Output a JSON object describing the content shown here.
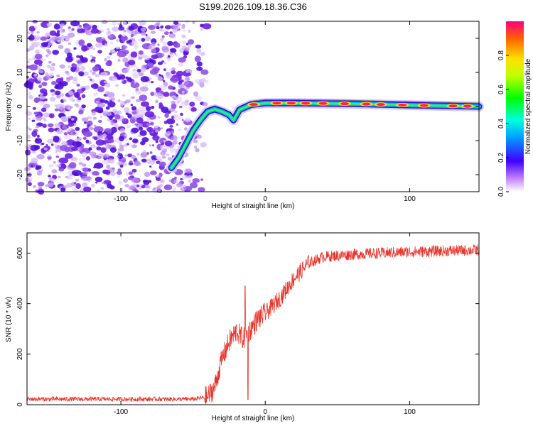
{
  "chart_data": [
    {
      "type": "heatmap",
      "title": "S199.2026.109.18.36.C36",
      "xlabel": "Height of straight line (km)",
      "ylabel": "Frequency (Hz)",
      "xlim": [
        -165,
        148
      ],
      "ylim": [
        -25,
        25
      ],
      "x_ticks": [
        -100,
        0,
        100
      ],
      "x_tick_labels": [
        "-100",
        "0",
        "100"
      ],
      "y_ticks": [
        -20,
        -10,
        0,
        10,
        20
      ],
      "y_tick_labels": [
        "-20",
        "-10",
        "0",
        "10",
        "20"
      ],
      "colorbar": {
        "label": "Normalized spectral amplitude",
        "range": [
          0,
          1
        ],
        "ticks": [
          0,
          0.2,
          0.4,
          0.6,
          0.8
        ],
        "tick_labels": [
          "0.0",
          "0.2",
          "0.4",
          "0.6",
          "0.8"
        ]
      },
      "noise_region_x": [
        -165,
        -52
      ],
      "signal_track": [
        {
          "x": -65,
          "freq": -18
        },
        {
          "x": -60,
          "freq": -15
        },
        {
          "x": -55,
          "freq": -11
        },
        {
          "x": -50,
          "freq": -7
        },
        {
          "x": -45,
          "freq": -4
        },
        {
          "x": -40,
          "freq": -1.5
        },
        {
          "x": -35,
          "freq": -0.8
        },
        {
          "x": -30,
          "freq": -1.5
        },
        {
          "x": -25,
          "freq": -2.5
        },
        {
          "x": -22,
          "freq": -4
        },
        {
          "x": -18,
          "freq": -1
        },
        {
          "x": -10,
          "freq": 0.5
        },
        {
          "x": 0,
          "freq": 1
        },
        {
          "x": 20,
          "freq": 1
        },
        {
          "x": 60,
          "freq": 0.8
        },
        {
          "x": 100,
          "freq": 0.4
        },
        {
          "x": 148,
          "freq": 0
        }
      ],
      "hotspots_x": [
        -8,
        8,
        18,
        28,
        40,
        55,
        70,
        80,
        95,
        110,
        130,
        140
      ]
    },
    {
      "type": "line",
      "xlabel": "Height of straight line (km)",
      "ylabel": "SNR (10 * v/v)",
      "xlim": [
        -165,
        148
      ],
      "ylim": [
        0,
        680
      ],
      "x_ticks": [
        -100,
        0,
        100
      ],
      "x_tick_labels": [
        "-100",
        "0",
        "100"
      ],
      "y_ticks": [
        0,
        200,
        400,
        600
      ],
      "y_tick_labels": [
        "0",
        "200",
        "400",
        "600"
      ],
      "color": "#e8352b",
      "envelope": [
        {
          "x": -165,
          "snr": 22
        },
        {
          "x": -50,
          "snr": 22
        },
        {
          "x": -40,
          "snr": 30
        },
        {
          "x": -35,
          "snr": 70
        },
        {
          "x": -30,
          "snr": 180
        },
        {
          "x": -25,
          "snr": 250
        },
        {
          "x": -20,
          "snr": 290
        },
        {
          "x": -15,
          "snr": 260
        },
        {
          "x": -10,
          "snr": 300
        },
        {
          "x": -5,
          "snr": 340
        },
        {
          "x": 0,
          "snr": 360
        },
        {
          "x": 10,
          "snr": 420
        },
        {
          "x": 20,
          "snr": 500
        },
        {
          "x": 30,
          "snr": 560
        },
        {
          "x": 40,
          "snr": 585
        },
        {
          "x": 60,
          "snr": 595
        },
        {
          "x": 100,
          "snr": 605
        },
        {
          "x": 148,
          "snr": 612
        }
      ],
      "notable_points": [
        {
          "x": -12,
          "snr": 20
        },
        {
          "x": -14,
          "snr": 470
        }
      ]
    }
  ]
}
